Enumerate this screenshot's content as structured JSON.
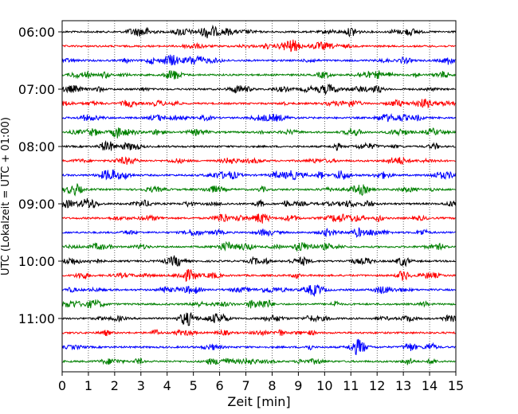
{
  "chart_data": {
    "type": "line",
    "subtype": "helicorder",
    "xlabel": "Zeit  [min]",
    "ylabel": "UTC (Lokalzeit = UTC + 01:00)",
    "xlim": [
      0,
      15
    ],
    "x_ticks": [
      "0",
      "1",
      "2",
      "3",
      "4",
      "5",
      "6",
      "7",
      "8",
      "9",
      "10",
      "11",
      "12",
      "13",
      "14",
      "15"
    ],
    "y_ticks": [
      "06:00",
      "07:00",
      "08:00",
      "09:00",
      "10:00",
      "11:00"
    ],
    "grid": "vertical dotted",
    "trace_interval_minutes": 15,
    "trace_colors": [
      "#000000",
      "#ff0000",
      "#0000ff",
      "#008000"
    ],
    "traces": [
      {
        "start": "06:00",
        "color": "#000000"
      },
      {
        "start": "06:15",
        "color": "#ff0000"
      },
      {
        "start": "06:30",
        "color": "#0000ff"
      },
      {
        "start": "06:45",
        "color": "#008000"
      },
      {
        "start": "07:00",
        "color": "#000000"
      },
      {
        "start": "07:15",
        "color": "#ff0000"
      },
      {
        "start": "07:30",
        "color": "#0000ff"
      },
      {
        "start": "07:45",
        "color": "#008000"
      },
      {
        "start": "08:00",
        "color": "#000000"
      },
      {
        "start": "08:15",
        "color": "#ff0000"
      },
      {
        "start": "08:30",
        "color": "#0000ff"
      },
      {
        "start": "08:45",
        "color": "#008000"
      },
      {
        "start": "09:00",
        "color": "#000000"
      },
      {
        "start": "09:15",
        "color": "#ff0000"
      },
      {
        "start": "09:30",
        "color": "#0000ff"
      },
      {
        "start": "09:45",
        "color": "#008000"
      },
      {
        "start": "10:00",
        "color": "#000000"
      },
      {
        "start": "10:15",
        "color": "#ff0000"
      },
      {
        "start": "10:30",
        "color": "#0000ff"
      },
      {
        "start": "10:45",
        "color": "#008000"
      },
      {
        "start": "11:00",
        "color": "#000000"
      },
      {
        "start": "11:15",
        "color": "#ff0000"
      },
      {
        "start": "11:30",
        "color": "#0000ff"
      },
      {
        "start": "11:45",
        "color": "#008000"
      }
    ]
  }
}
